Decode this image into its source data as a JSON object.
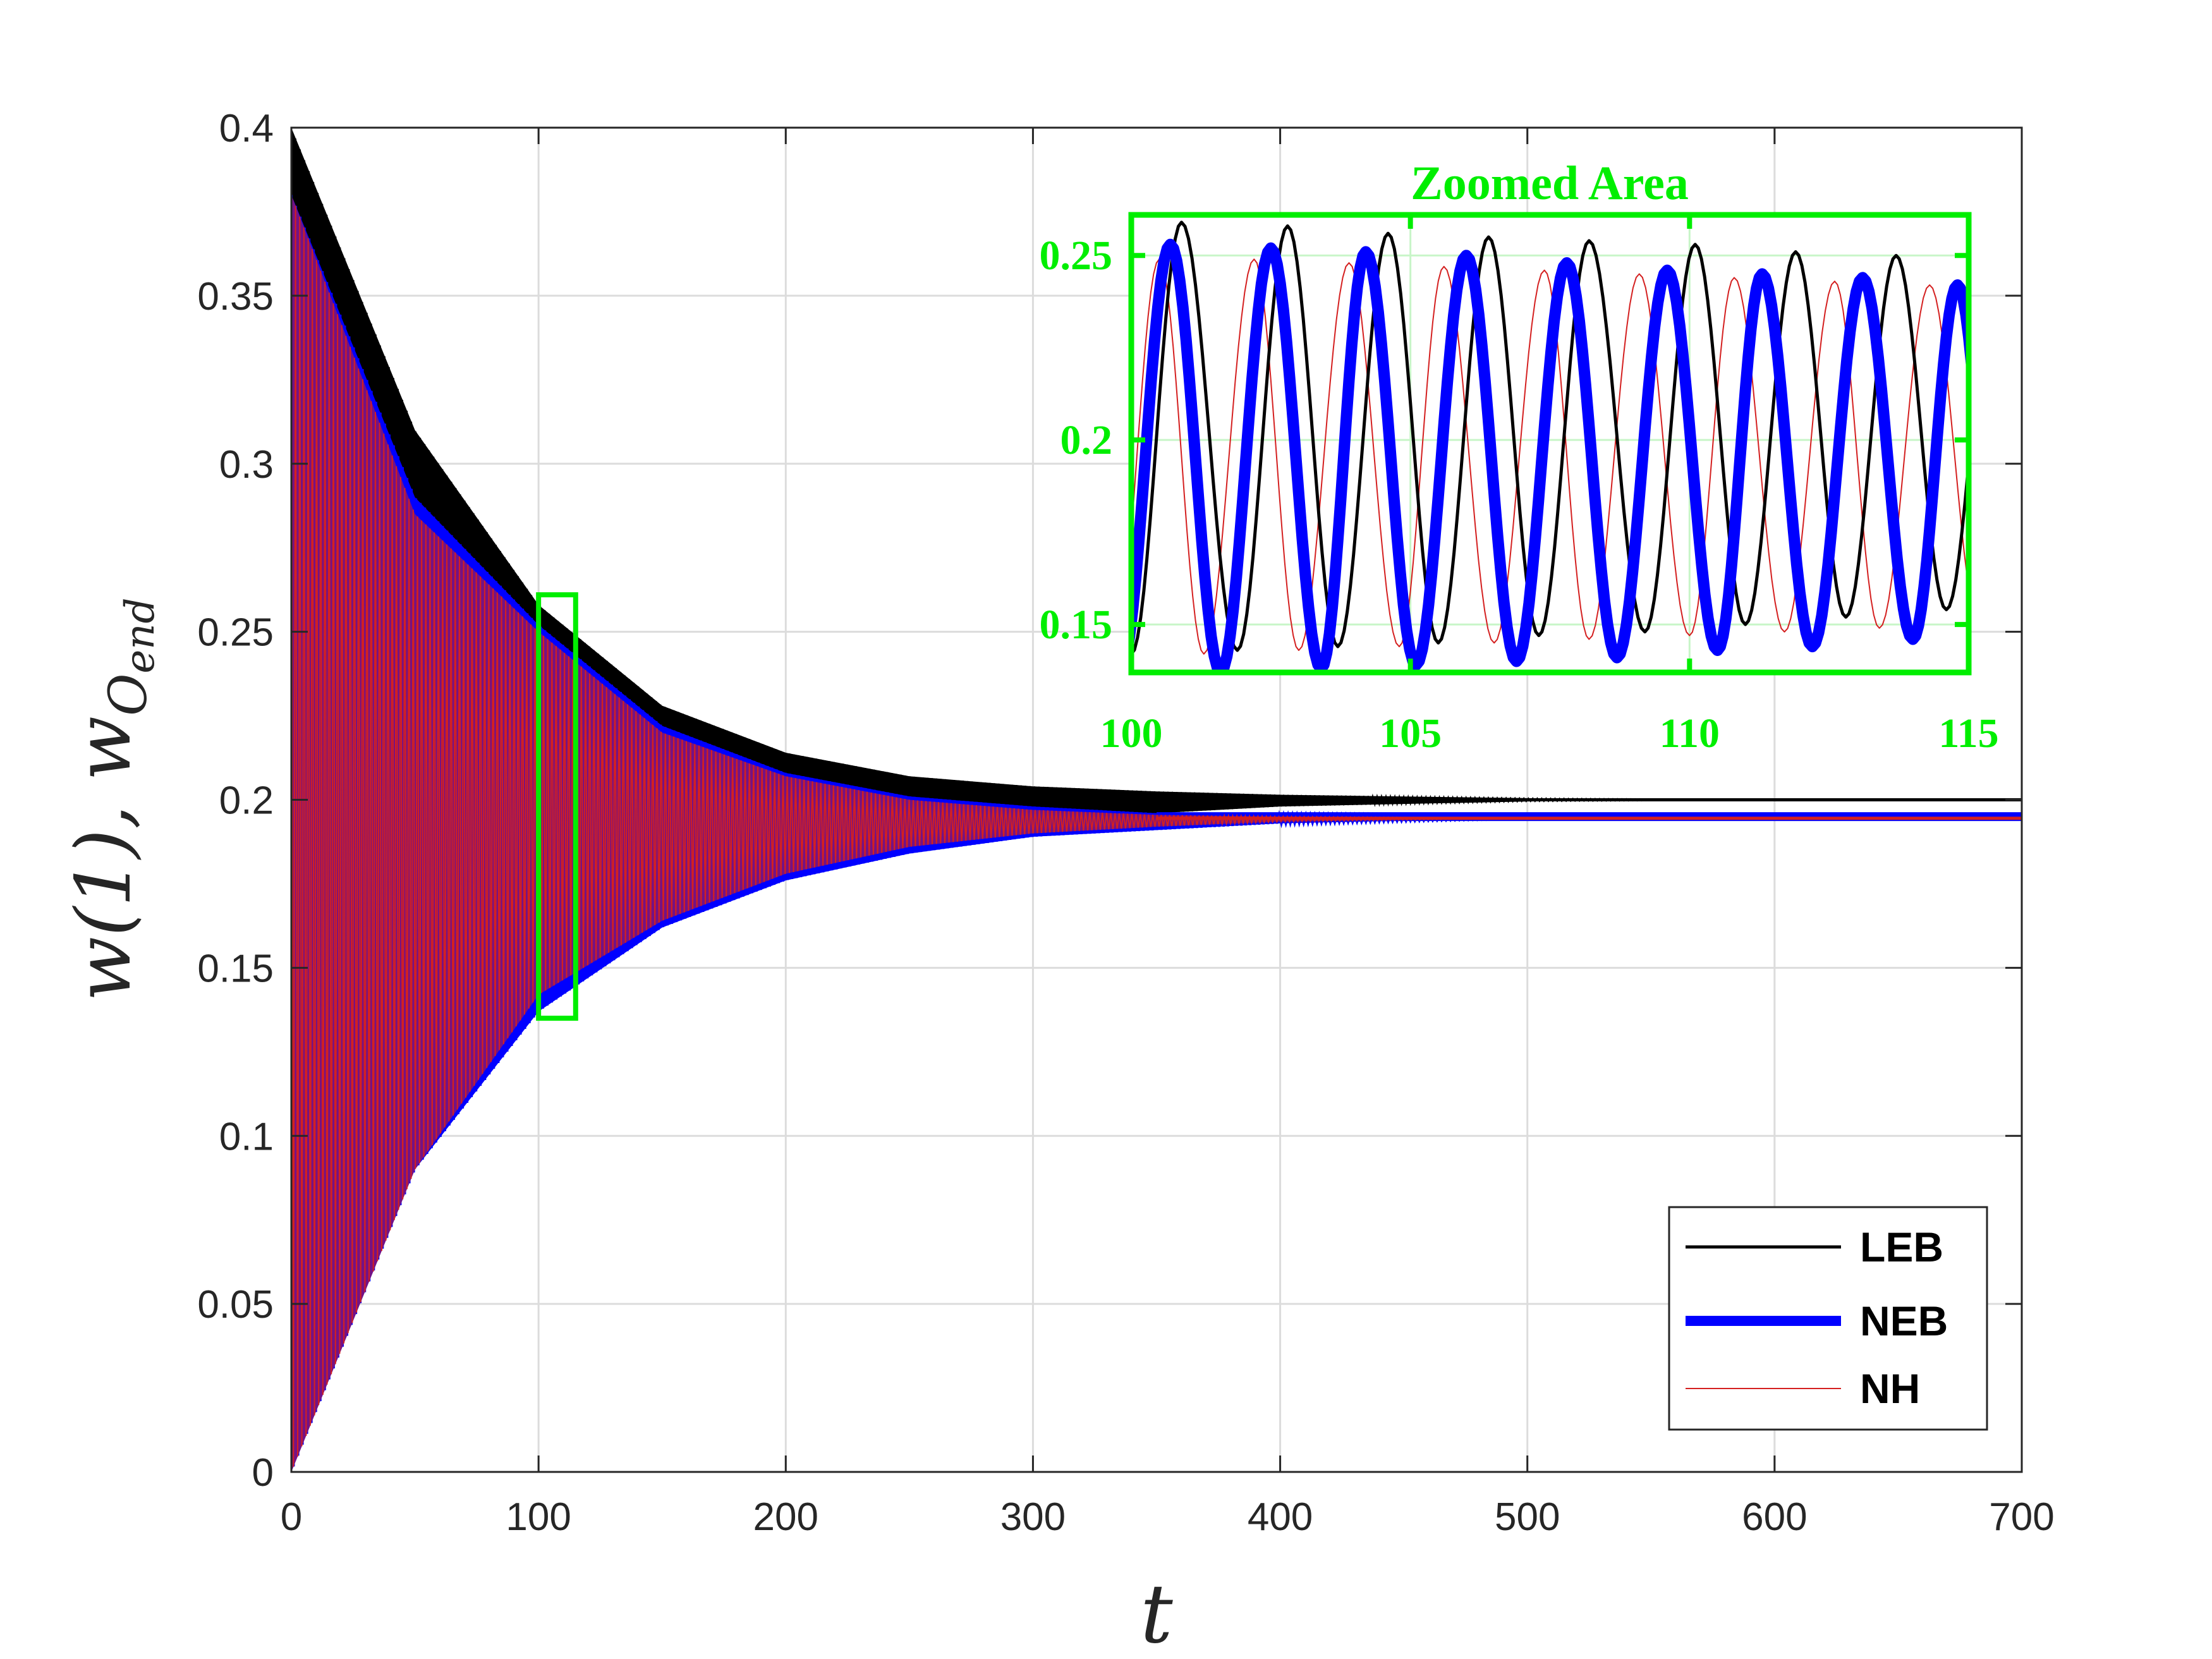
{
  "chart_data": {
    "type": "line",
    "xlabel": "t",
    "ylabel": "w(1), w_{O_{end}}",
    "xlim": [
      0,
      700
    ],
    "ylim": [
      0,
      0.4
    ],
    "xticks": [
      "0",
      "100",
      "200",
      "300",
      "400",
      "500",
      "600",
      "700"
    ],
    "yticks": [
      "0",
      "0.05",
      "0.1",
      "0.15",
      "0.2",
      "0.25",
      "0.3",
      "0.35",
      "0.4"
    ],
    "grid": true,
    "legend_position": "bottom-right",
    "series": [
      {
        "name": "LEB",
        "color": "#000000",
        "envelope": {
          "t": [
            0,
            50,
            100,
            150,
            200,
            250,
            300,
            350,
            400,
            500,
            600,
            700
          ],
          "upper": [
            0.4,
            0.31,
            0.258,
            0.228,
            0.214,
            0.207,
            0.204,
            0.2025,
            0.2015,
            0.2005,
            0.2,
            0.2
          ],
          "lower": [
            0.0,
            0.1,
            0.142,
            0.168,
            0.182,
            0.19,
            0.194,
            0.196,
            0.198,
            0.1995,
            0.2,
            0.2
          ]
        },
        "final_value": 0.2
      },
      {
        "name": "NEB",
        "color": "#0000ff",
        "envelope": {
          "t": [
            0,
            50,
            100,
            150,
            200,
            250,
            300,
            350,
            400,
            500,
            600,
            700
          ],
          "upper": [
            0.38,
            0.29,
            0.252,
            0.222,
            0.208,
            0.201,
            0.198,
            0.196,
            0.1955,
            0.195,
            0.195,
            0.195
          ],
          "lower": [
            0.0,
            0.09,
            0.137,
            0.162,
            0.176,
            0.184,
            0.189,
            0.191,
            0.193,
            0.1945,
            0.195,
            0.195
          ]
        },
        "final_value": 0.195
      },
      {
        "name": "NH",
        "color": "#d42020",
        "envelope": {
          "t": [
            0,
            50,
            100,
            150,
            200,
            250,
            300,
            350,
            400,
            500,
            600,
            700
          ],
          "upper": [
            0.38,
            0.285,
            0.25,
            0.22,
            0.207,
            0.2,
            0.197,
            0.1955,
            0.195,
            0.1945,
            0.1945,
            0.1945
          ],
          "lower": [
            0.0,
            0.09,
            0.142,
            0.164,
            0.178,
            0.186,
            0.19,
            0.192,
            0.1935,
            0.1945,
            0.1945,
            0.1945
          ]
        },
        "final_value": 0.1945
      }
    ],
    "zoom_box": {
      "xlim": [
        100,
        115
      ],
      "ylim": [
        0.135,
        0.261
      ],
      "color": "#00ee00"
    },
    "inset": {
      "title": "Zoomed Area",
      "xlim": [
        100,
        115
      ],
      "ylim": [
        0.137,
        0.261
      ],
      "xticks": [
        "100",
        "105",
        "110",
        "115"
      ],
      "yticks": [
        "0.15",
        "0.2",
        "0.25"
      ],
      "series": [
        {
          "name": "LEB",
          "color": "#000000",
          "peaks": [
            [
              100.9,
              0.259
            ],
            [
              102.8,
              0.258
            ],
            [
              104.6,
              0.256
            ],
            [
              106.4,
              0.255
            ],
            [
              108.2,
              0.254
            ],
            [
              110.1,
              0.253
            ],
            [
              111.9,
              0.251
            ],
            [
              113.7,
              0.25
            ]
          ],
          "troughs": [
            [
              100.0,
              0.142
            ],
            [
              101.9,
              0.143
            ],
            [
              103.7,
              0.144
            ],
            [
              105.5,
              0.145
            ],
            [
              107.3,
              0.147
            ],
            [
              109.2,
              0.148
            ],
            [
              111.0,
              0.15
            ],
            [
              112.8,
              0.152
            ],
            [
              114.6,
              0.154
            ]
          ]
        },
        {
          "name": "NEB",
          "color": "#0000ff",
          "peaks": [
            [
              100.7,
              0.253
            ],
            [
              102.5,
              0.252
            ],
            [
              104.2,
              0.251
            ],
            [
              106.0,
              0.25
            ],
            [
              107.8,
              0.248
            ],
            [
              109.6,
              0.246
            ],
            [
              111.3,
              0.245
            ],
            [
              113.1,
              0.244
            ],
            [
              114.8,
              0.242
            ]
          ],
          "troughs": [
            [
              101.6,
              0.137
            ],
            [
              103.4,
              0.138
            ],
            [
              105.1,
              0.139
            ],
            [
              106.9,
              0.14
            ],
            [
              108.7,
              0.141
            ],
            [
              110.5,
              0.143
            ],
            [
              112.2,
              0.144
            ],
            [
              114.0,
              0.146
            ]
          ]
        },
        {
          "name": "NH",
          "color": "#d42020",
          "peaks": [
            [
              100.5,
              0.249
            ],
            [
              102.2,
              0.249
            ],
            [
              103.9,
              0.248
            ],
            [
              105.6,
              0.247
            ],
            [
              107.4,
              0.246
            ],
            [
              109.1,
              0.245
            ],
            [
              110.8,
              0.244
            ],
            [
              112.6,
              0.243
            ],
            [
              114.3,
              0.242
            ]
          ],
          "troughs": [
            [
              101.3,
              0.142
            ],
            [
              103.0,
              0.143
            ],
            [
              104.8,
              0.144
            ],
            [
              106.5,
              0.145
            ],
            [
              108.2,
              0.146
            ],
            [
              110.0,
              0.147
            ],
            [
              111.7,
              0.148
            ],
            [
              113.4,
              0.149
            ]
          ]
        }
      ]
    }
  }
}
